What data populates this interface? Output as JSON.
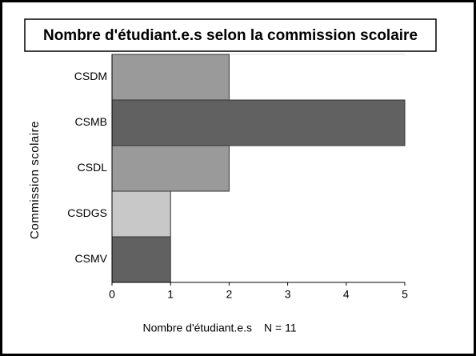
{
  "chart_data": {
    "type": "bar",
    "orientation": "horizontal",
    "title": "Nombre d'étudiant.e.s selon la commission scolaire",
    "xlabel": "Nombre d'étudiant.e.s",
    "annotation": "N = 11",
    "ylabel": "Commission scolaire",
    "categories": [
      "CSDM",
      "CSMB",
      "CSDL",
      "CSDGS",
      "CSMV"
    ],
    "values": [
      2,
      5,
      2,
      1,
      1
    ],
    "colors": [
      "#9a9a9a",
      "#616161",
      "#9a9a9a",
      "#c8c8c8",
      "#616161"
    ],
    "xlim": [
      0,
      5
    ],
    "xticks": [
      0,
      1,
      2,
      3,
      4,
      5
    ],
    "grid": false
  }
}
